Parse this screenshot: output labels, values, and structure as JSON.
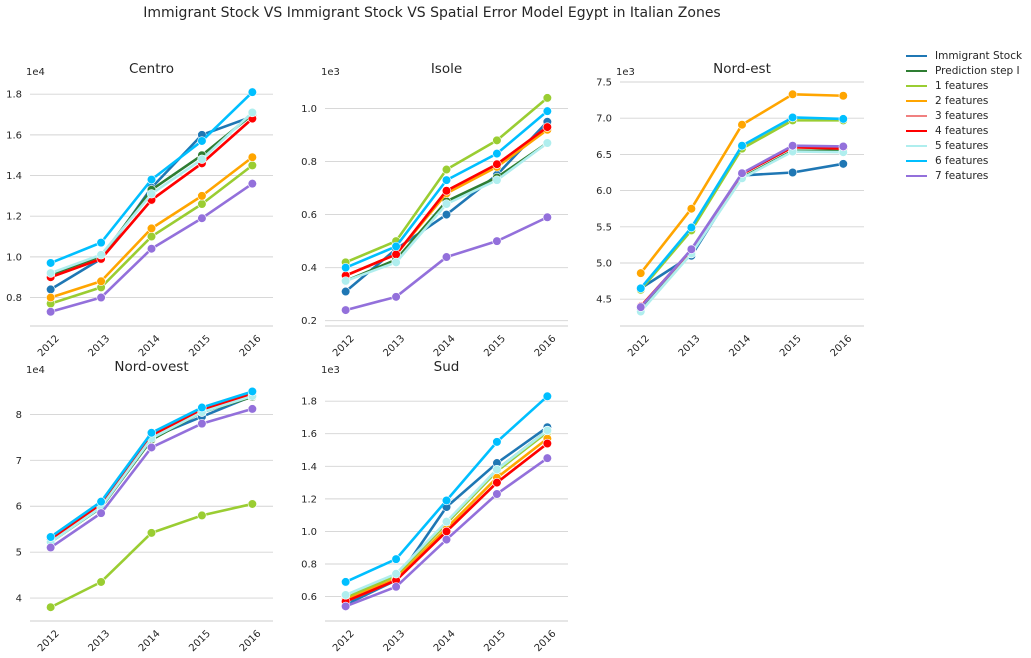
{
  "figure": {
    "suptitle": "Immigrant Stock VS Immigrant Stock VS Spatial Error Model Egypt in Italian Zones",
    "legend": [
      {
        "label": "Immigrant Stock",
        "color": "#1f77b4"
      },
      {
        "label": "Prediction step I",
        "color": "#2e7d32"
      },
      {
        "label": "1 features",
        "color": "#9acd32"
      },
      {
        "label": "2 features",
        "color": "#ffa500"
      },
      {
        "label": "3 features",
        "color": "#f08080"
      },
      {
        "label": "4 features",
        "color": "#ff0000"
      },
      {
        "label": "5 features",
        "color": "#afeeee"
      },
      {
        "label": "6 features",
        "color": "#00bfff"
      },
      {
        "label": "7 features",
        "color": "#9370db"
      }
    ]
  },
  "chart_data": [
    {
      "type": "line",
      "title": "Centro",
      "offset_label": "1e4",
      "x": [
        "2012",
        "2013",
        "2014",
        "2015",
        "2016"
      ],
      "ylim": [
        0.66,
        1.86
      ],
      "yticks": [
        0.8,
        1.0,
        1.2,
        1.4,
        1.6,
        1.8
      ],
      "ytick_labels": [
        "0.8",
        "1.0",
        "1.2",
        "1.4",
        "1.6",
        "1.8"
      ],
      "grid": true,
      "series": [
        {
          "name": "Immigrant Stock",
          "color": "#1f77b4",
          "values": [
            0.84,
            0.99,
            1.34,
            1.6,
            1.69
          ]
        },
        {
          "name": "Prediction step I",
          "color": "#2e7d32",
          "values": [
            0.91,
            1.0,
            1.33,
            1.5,
            1.7
          ]
        },
        {
          "name": "1 features",
          "color": "#9acd32",
          "values": [
            0.77,
            0.85,
            1.1,
            1.26,
            1.45
          ]
        },
        {
          "name": "2 features",
          "color": "#ffa500",
          "values": [
            0.8,
            0.88,
            1.14,
            1.3,
            1.49
          ]
        },
        {
          "name": "3 features",
          "color": "#f08080",
          "values": [
            0.9,
            0.99,
            1.28,
            1.46,
            1.68
          ]
        },
        {
          "name": "4 features",
          "color": "#ff0000",
          "values": [
            0.9,
            0.99,
            1.28,
            1.46,
            1.68
          ]
        },
        {
          "name": "5 features",
          "color": "#afeeee",
          "values": [
            0.92,
            1.01,
            1.31,
            1.48,
            1.71
          ]
        },
        {
          "name": "6 features",
          "color": "#00bfff",
          "values": [
            0.97,
            1.07,
            1.38,
            1.57,
            1.81
          ]
        },
        {
          "name": "7 features",
          "color": "#9370db",
          "values": [
            0.73,
            0.8,
            1.04,
            1.19,
            1.36
          ]
        }
      ]
    },
    {
      "type": "line",
      "title": "Isole",
      "offset_label": "1e3",
      "x": [
        "2012",
        "2013",
        "2014",
        "2015",
        "2016"
      ],
      "ylim": [
        0.18,
        1.1
      ],
      "yticks": [
        0.2,
        0.4,
        0.6,
        0.8,
        1.0
      ],
      "ytick_labels": [
        "0.2",
        "0.4",
        "0.6",
        "0.8",
        "1.0"
      ],
      "grid": true,
      "series": [
        {
          "name": "Immigrant Stock",
          "color": "#1f77b4",
          "values": [
            0.31,
            0.47,
            0.6,
            0.75,
            0.95
          ]
        },
        {
          "name": "Prediction step I",
          "color": "#2e7d32",
          "values": [
            0.35,
            0.43,
            0.65,
            0.74,
            0.87
          ]
        },
        {
          "name": "1 features",
          "color": "#9acd32",
          "values": [
            0.42,
            0.5,
            0.77,
            0.88,
            1.04
          ]
        },
        {
          "name": "2 features",
          "color": "#ffa500",
          "values": [
            0.37,
            0.45,
            0.68,
            0.78,
            0.92
          ]
        },
        {
          "name": "3 features",
          "color": "#f08080",
          "values": [
            0.37,
            0.45,
            0.69,
            0.79,
            0.93
          ]
        },
        {
          "name": "4 features",
          "color": "#ff0000",
          "values": [
            0.37,
            0.45,
            0.69,
            0.79,
            0.93
          ]
        },
        {
          "name": "5 features",
          "color": "#afeeee",
          "values": [
            0.35,
            0.42,
            0.64,
            0.73,
            0.87
          ]
        },
        {
          "name": "6 features",
          "color": "#00bfff",
          "values": [
            0.4,
            0.48,
            0.73,
            0.83,
            0.99
          ]
        },
        {
          "name": "7 features",
          "color": "#9370db",
          "values": [
            0.24,
            0.29,
            0.44,
            0.5,
            0.59
          ]
        }
      ]
    },
    {
      "type": "line",
      "title": "Nord-est",
      "offset_label": "1e3",
      "x": [
        "2012",
        "2013",
        "2014",
        "2015",
        "2016"
      ],
      "ylim": [
        4.13,
        7.5
      ],
      "yticks": [
        4.5,
        5.0,
        5.5,
        6.0,
        6.5,
        7.0,
        7.5
      ],
      "ytick_labels": [
        "4.5",
        "5.0",
        "5.5",
        "6.0",
        "6.5",
        "7.0",
        "7.5"
      ],
      "grid": true,
      "series": [
        {
          "name": "Immigrant Stock",
          "color": "#1f77b4",
          "values": [
            4.65,
            5.1,
            6.21,
            6.25,
            6.37
          ]
        },
        {
          "name": "Prediction step I",
          "color": "#2e7d32",
          "values": [
            4.36,
            5.15,
            6.18,
            6.55,
            6.55
          ]
        },
        {
          "name": "1 features",
          "color": "#9acd32",
          "values": [
            4.63,
            5.45,
            6.58,
            6.97,
            6.97
          ]
        },
        {
          "name": "2 features",
          "color": "#ffa500",
          "values": [
            4.86,
            5.75,
            6.91,
            7.33,
            7.31
          ]
        },
        {
          "name": "3 features",
          "color": "#f08080",
          "values": [
            4.4,
            5.18,
            6.23,
            6.6,
            6.58
          ]
        },
        {
          "name": "4 features",
          "color": "#ff0000",
          "values": [
            4.4,
            5.18,
            6.23,
            6.6,
            6.58
          ]
        },
        {
          "name": "5 features",
          "color": "#afeeee",
          "values": [
            4.33,
            5.13,
            6.17,
            6.54,
            6.53
          ]
        },
        {
          "name": "6 features",
          "color": "#00bfff",
          "values": [
            4.65,
            5.49,
            6.62,
            7.01,
            6.99
          ]
        },
        {
          "name": "7 features",
          "color": "#9370db",
          "values": [
            4.39,
            5.19,
            6.24,
            6.62,
            6.61
          ]
        }
      ]
    },
    {
      "type": "line",
      "title": "Nord-ovest",
      "offset_label": "1e4",
      "x": [
        "2012",
        "2013",
        "2014",
        "2015",
        "2016"
      ],
      "ylim": [
        3.5,
        8.75
      ],
      "yticks": [
        4,
        5,
        6,
        7,
        8
      ],
      "ytick_labels": [
        "4",
        "5",
        "6",
        "7",
        "8"
      ],
      "grid": true,
      "series": [
        {
          "name": "Immigrant Stock",
          "color": "#1f77b4",
          "values": [
            5.3,
            6.05,
            7.5,
            7.95,
            8.4
          ]
        },
        {
          "name": "Prediction step I",
          "color": "#2e7d32",
          "values": [
            5.22,
            5.97,
            7.45,
            8.05,
            8.38
          ]
        },
        {
          "name": "1 features",
          "color": "#9acd32",
          "values": [
            3.8,
            4.35,
            5.42,
            5.8,
            6.05
          ]
        },
        {
          "name": "2 features",
          "color": "#ffa500",
          "values": [
            5.28,
            6.05,
            7.55,
            8.1,
            8.45
          ]
        },
        {
          "name": "3 features",
          "color": "#f08080",
          "values": [
            5.28,
            6.05,
            7.55,
            8.1,
            8.45
          ]
        },
        {
          "name": "4 features",
          "color": "#ff0000",
          "values": [
            5.28,
            6.05,
            7.55,
            8.1,
            8.45
          ]
        },
        {
          "name": "5 features",
          "color": "#afeeee",
          "values": [
            5.22,
            5.98,
            7.48,
            8.05,
            8.4
          ]
        },
        {
          "name": "6 features",
          "color": "#00bfff",
          "values": [
            5.33,
            6.1,
            7.6,
            8.15,
            8.5
          ]
        },
        {
          "name": "7 features",
          "color": "#9370db",
          "values": [
            5.1,
            5.85,
            7.28,
            7.8,
            8.12
          ]
        }
      ]
    },
    {
      "type": "line",
      "title": "Sud",
      "offset_label": "1e3",
      "x": [
        "2012",
        "2013",
        "2014",
        "2015",
        "2016"
      ],
      "ylim": [
        0.45,
        1.93
      ],
      "yticks": [
        0.6,
        0.8,
        1.0,
        1.2,
        1.4,
        1.6,
        1.8
      ],
      "ytick_labels": [
        "0.6",
        "0.8",
        "1.0",
        "1.2",
        "1.4",
        "1.6",
        "1.8"
      ],
      "grid": true,
      "series": [
        {
          "name": "Immigrant Stock",
          "color": "#1f77b4",
          "values": [
            0.55,
            0.7,
            1.15,
            1.42,
            1.64
          ]
        },
        {
          "name": "Prediction step I",
          "color": "#2e7d32",
          "values": [
            0.59,
            0.73,
            1.05,
            1.38,
            1.62
          ]
        },
        {
          "name": "1 features",
          "color": "#9acd32",
          "values": [
            0.59,
            0.73,
            1.05,
            1.37,
            1.61
          ]
        },
        {
          "name": "2 features",
          "color": "#ffa500",
          "values": [
            0.58,
            0.71,
            1.02,
            1.33,
            1.57
          ]
        },
        {
          "name": "3 features",
          "color": "#f08080",
          "values": [
            0.57,
            0.7,
            1.0,
            1.3,
            1.54
          ]
        },
        {
          "name": "4 features",
          "color": "#ff0000",
          "values": [
            0.57,
            0.7,
            1.0,
            1.3,
            1.54
          ]
        },
        {
          "name": "5 features",
          "color": "#afeeee",
          "values": [
            0.61,
            0.74,
            1.06,
            1.38,
            1.62
          ]
        },
        {
          "name": "6 features",
          "color": "#00bfff",
          "values": [
            0.69,
            0.83,
            1.19,
            1.55,
            1.83
          ]
        },
        {
          "name": "7 features",
          "color": "#9370db",
          "values": [
            0.54,
            0.66,
            0.95,
            1.23,
            1.45
          ]
        }
      ]
    }
  ]
}
